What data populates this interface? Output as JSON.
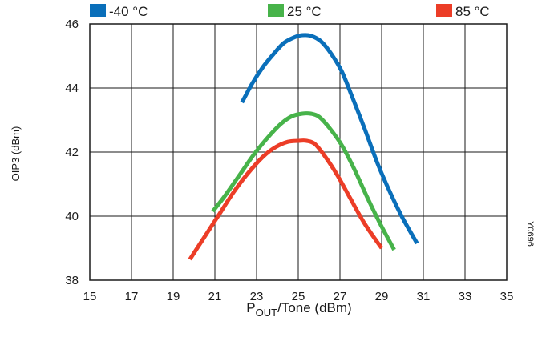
{
  "chart_data": {
    "type": "line",
    "title": "",
    "xlabel": {
      "main": "P",
      "sub": "OUT",
      "rest": "/Tone (dBm)"
    },
    "ylabel": "OIP3 (dBm)",
    "xlim": [
      15,
      35
    ],
    "ylim": [
      38,
      46
    ],
    "xticks": [
      15,
      17,
      19,
      21,
      23,
      25,
      27,
      29,
      31,
      33,
      35
    ],
    "yticks": [
      38,
      40,
      42,
      44,
      46
    ],
    "grid": true,
    "legend_position": "top",
    "side_code": "Y0696",
    "series": [
      {
        "name": "-40 °C",
        "color": "#0a6fba",
        "x": [
          22.3,
          22.8,
          23.3,
          23.8,
          24.3,
          24.8,
          25.2,
          25.6,
          26.1,
          26.6,
          27.1,
          27.6,
          28.2,
          28.8,
          29.4,
          30.0,
          30.7
        ],
        "y": [
          43.55,
          44.15,
          44.65,
          45.05,
          45.4,
          45.58,
          45.65,
          45.63,
          45.45,
          45.05,
          44.5,
          43.7,
          42.7,
          41.65,
          40.75,
          39.95,
          39.15
        ]
      },
      {
        "name": "25 °C",
        "color": "#47b34a",
        "x": [
          20.9,
          21.5,
          22.2,
          22.9,
          23.6,
          24.2,
          24.7,
          25.2,
          25.6,
          26.0,
          26.5,
          27.1,
          27.7,
          28.3,
          28.9,
          29.6
        ],
        "y": [
          40.15,
          40.65,
          41.3,
          41.95,
          42.5,
          42.9,
          43.12,
          43.2,
          43.2,
          43.1,
          42.75,
          42.2,
          41.45,
          40.6,
          39.8,
          38.95
        ]
      },
      {
        "name": "85 °C",
        "color": "#ec3d27",
        "x": [
          19.8,
          20.5,
          21.2,
          21.9,
          22.6,
          23.3,
          23.9,
          24.5,
          25.0,
          25.4,
          25.8,
          26.3,
          26.9,
          27.5,
          28.2,
          29.0
        ],
        "y": [
          38.65,
          39.35,
          40.05,
          40.75,
          41.35,
          41.85,
          42.15,
          42.32,
          42.35,
          42.35,
          42.25,
          41.85,
          41.25,
          40.55,
          39.75,
          39.0
        ]
      }
    ]
  }
}
